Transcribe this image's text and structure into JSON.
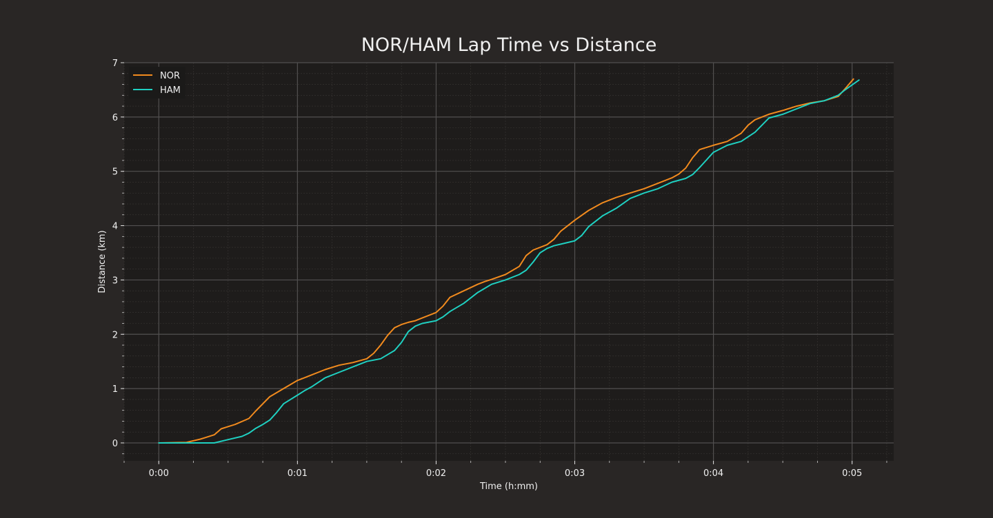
{
  "chart_data": {
    "type": "line",
    "title": "NOR/HAM Lap Time vs Distance",
    "xlabel": "Time (h:mm)",
    "ylabel": "Distance (km)",
    "x_ticks": [
      {
        "value": 0,
        "label": "0:00"
      },
      {
        "value": 1,
        "label": "0:01"
      },
      {
        "value": 2,
        "label": "0:02"
      },
      {
        "value": 3,
        "label": "0:03"
      },
      {
        "value": 4,
        "label": "0:04"
      },
      {
        "value": 5,
        "label": "0:05"
      }
    ],
    "y_ticks": [
      {
        "value": 0,
        "label": "0"
      },
      {
        "value": 1,
        "label": "1"
      },
      {
        "value": 2,
        "label": "2"
      },
      {
        "value": 3,
        "label": "3"
      },
      {
        "value": 4,
        "label": "4"
      },
      {
        "value": 5,
        "label": "5"
      },
      {
        "value": 6,
        "label": "6"
      },
      {
        "value": 7,
        "label": "7"
      }
    ],
    "xlim": [
      -0.25,
      5.3
    ],
    "ylim": [
      -0.33,
      7
    ],
    "x_minor_step": 0.25,
    "y_minor_step": 0.2,
    "grid": true,
    "legend_position": "top-left",
    "series": [
      {
        "name": "NOR",
        "color": "#f28b1e",
        "x": [
          0,
          0.2,
          0.3,
          0.4,
          0.45,
          0.5,
          0.55,
          0.65,
          0.7,
          0.8,
          0.9,
          1.0,
          1.05,
          1.1,
          1.2,
          1.3,
          1.4,
          1.5,
          1.55,
          1.6,
          1.65,
          1.7,
          1.75,
          1.8,
          1.85,
          1.9,
          2.0,
          2.05,
          2.1,
          2.2,
          2.3,
          2.35,
          2.4,
          2.5,
          2.6,
          2.65,
          2.7,
          2.8,
          2.85,
          2.9,
          3.0,
          3.1,
          3.2,
          3.3,
          3.4,
          3.5,
          3.6,
          3.7,
          3.75,
          3.8,
          3.85,
          3.9,
          4.0,
          4.1,
          4.2,
          4.25,
          4.3,
          4.4,
          4.5,
          4.6,
          4.7,
          4.8,
          4.9,
          4.95,
          5.01
        ],
        "y": [
          0,
          0.01,
          0.07,
          0.15,
          0.26,
          0.3,
          0.34,
          0.45,
          0.59,
          0.85,
          1.0,
          1.15,
          1.2,
          1.25,
          1.35,
          1.43,
          1.48,
          1.55,
          1.65,
          1.8,
          1.98,
          2.12,
          2.18,
          2.22,
          2.25,
          2.3,
          2.4,
          2.52,
          2.68,
          2.8,
          2.92,
          2.97,
          3.01,
          3.1,
          3.25,
          3.45,
          3.55,
          3.65,
          3.75,
          3.9,
          4.1,
          4.28,
          4.42,
          4.52,
          4.6,
          4.68,
          4.78,
          4.88,
          4.95,
          5.06,
          5.25,
          5.4,
          5.48,
          5.55,
          5.7,
          5.85,
          5.95,
          6.05,
          6.12,
          6.2,
          6.26,
          6.3,
          6.38,
          6.52,
          6.7
        ]
      },
      {
        "name": "HAM",
        "color": "#1fd1c2",
        "x": [
          0,
          0.1,
          0.4,
          0.5,
          0.6,
          0.65,
          0.7,
          0.75,
          0.8,
          0.85,
          0.9,
          1.0,
          1.05,
          1.1,
          1.2,
          1.3,
          1.4,
          1.5,
          1.6,
          1.7,
          1.75,
          1.8,
          1.85,
          1.9,
          2.0,
          2.05,
          2.1,
          2.2,
          2.3,
          2.4,
          2.5,
          2.6,
          2.65,
          2.7,
          2.75,
          2.8,
          2.85,
          2.9,
          3.0,
          3.05,
          3.1,
          3.2,
          3.3,
          3.4,
          3.5,
          3.6,
          3.7,
          3.8,
          3.85,
          3.9,
          4.0,
          4.1,
          4.2,
          4.3,
          4.4,
          4.5,
          4.6,
          4.7,
          4.8,
          4.9,
          4.95,
          5.05
        ],
        "y": [
          0,
          0,
          0,
          0.06,
          0.12,
          0.18,
          0.27,
          0.34,
          0.42,
          0.56,
          0.72,
          0.88,
          0.96,
          1.03,
          1.2,
          1.3,
          1.4,
          1.5,
          1.55,
          1.7,
          1.85,
          2.05,
          2.15,
          2.2,
          2.25,
          2.32,
          2.42,
          2.57,
          2.77,
          2.92,
          3.0,
          3.1,
          3.18,
          3.33,
          3.5,
          3.58,
          3.63,
          3.66,
          3.72,
          3.82,
          3.98,
          4.18,
          4.32,
          4.5,
          4.6,
          4.68,
          4.8,
          4.87,
          4.94,
          5.07,
          5.35,
          5.48,
          5.55,
          5.72,
          5.98,
          6.05,
          6.15,
          6.25,
          6.3,
          6.4,
          6.5,
          6.68
        ]
      }
    ]
  }
}
